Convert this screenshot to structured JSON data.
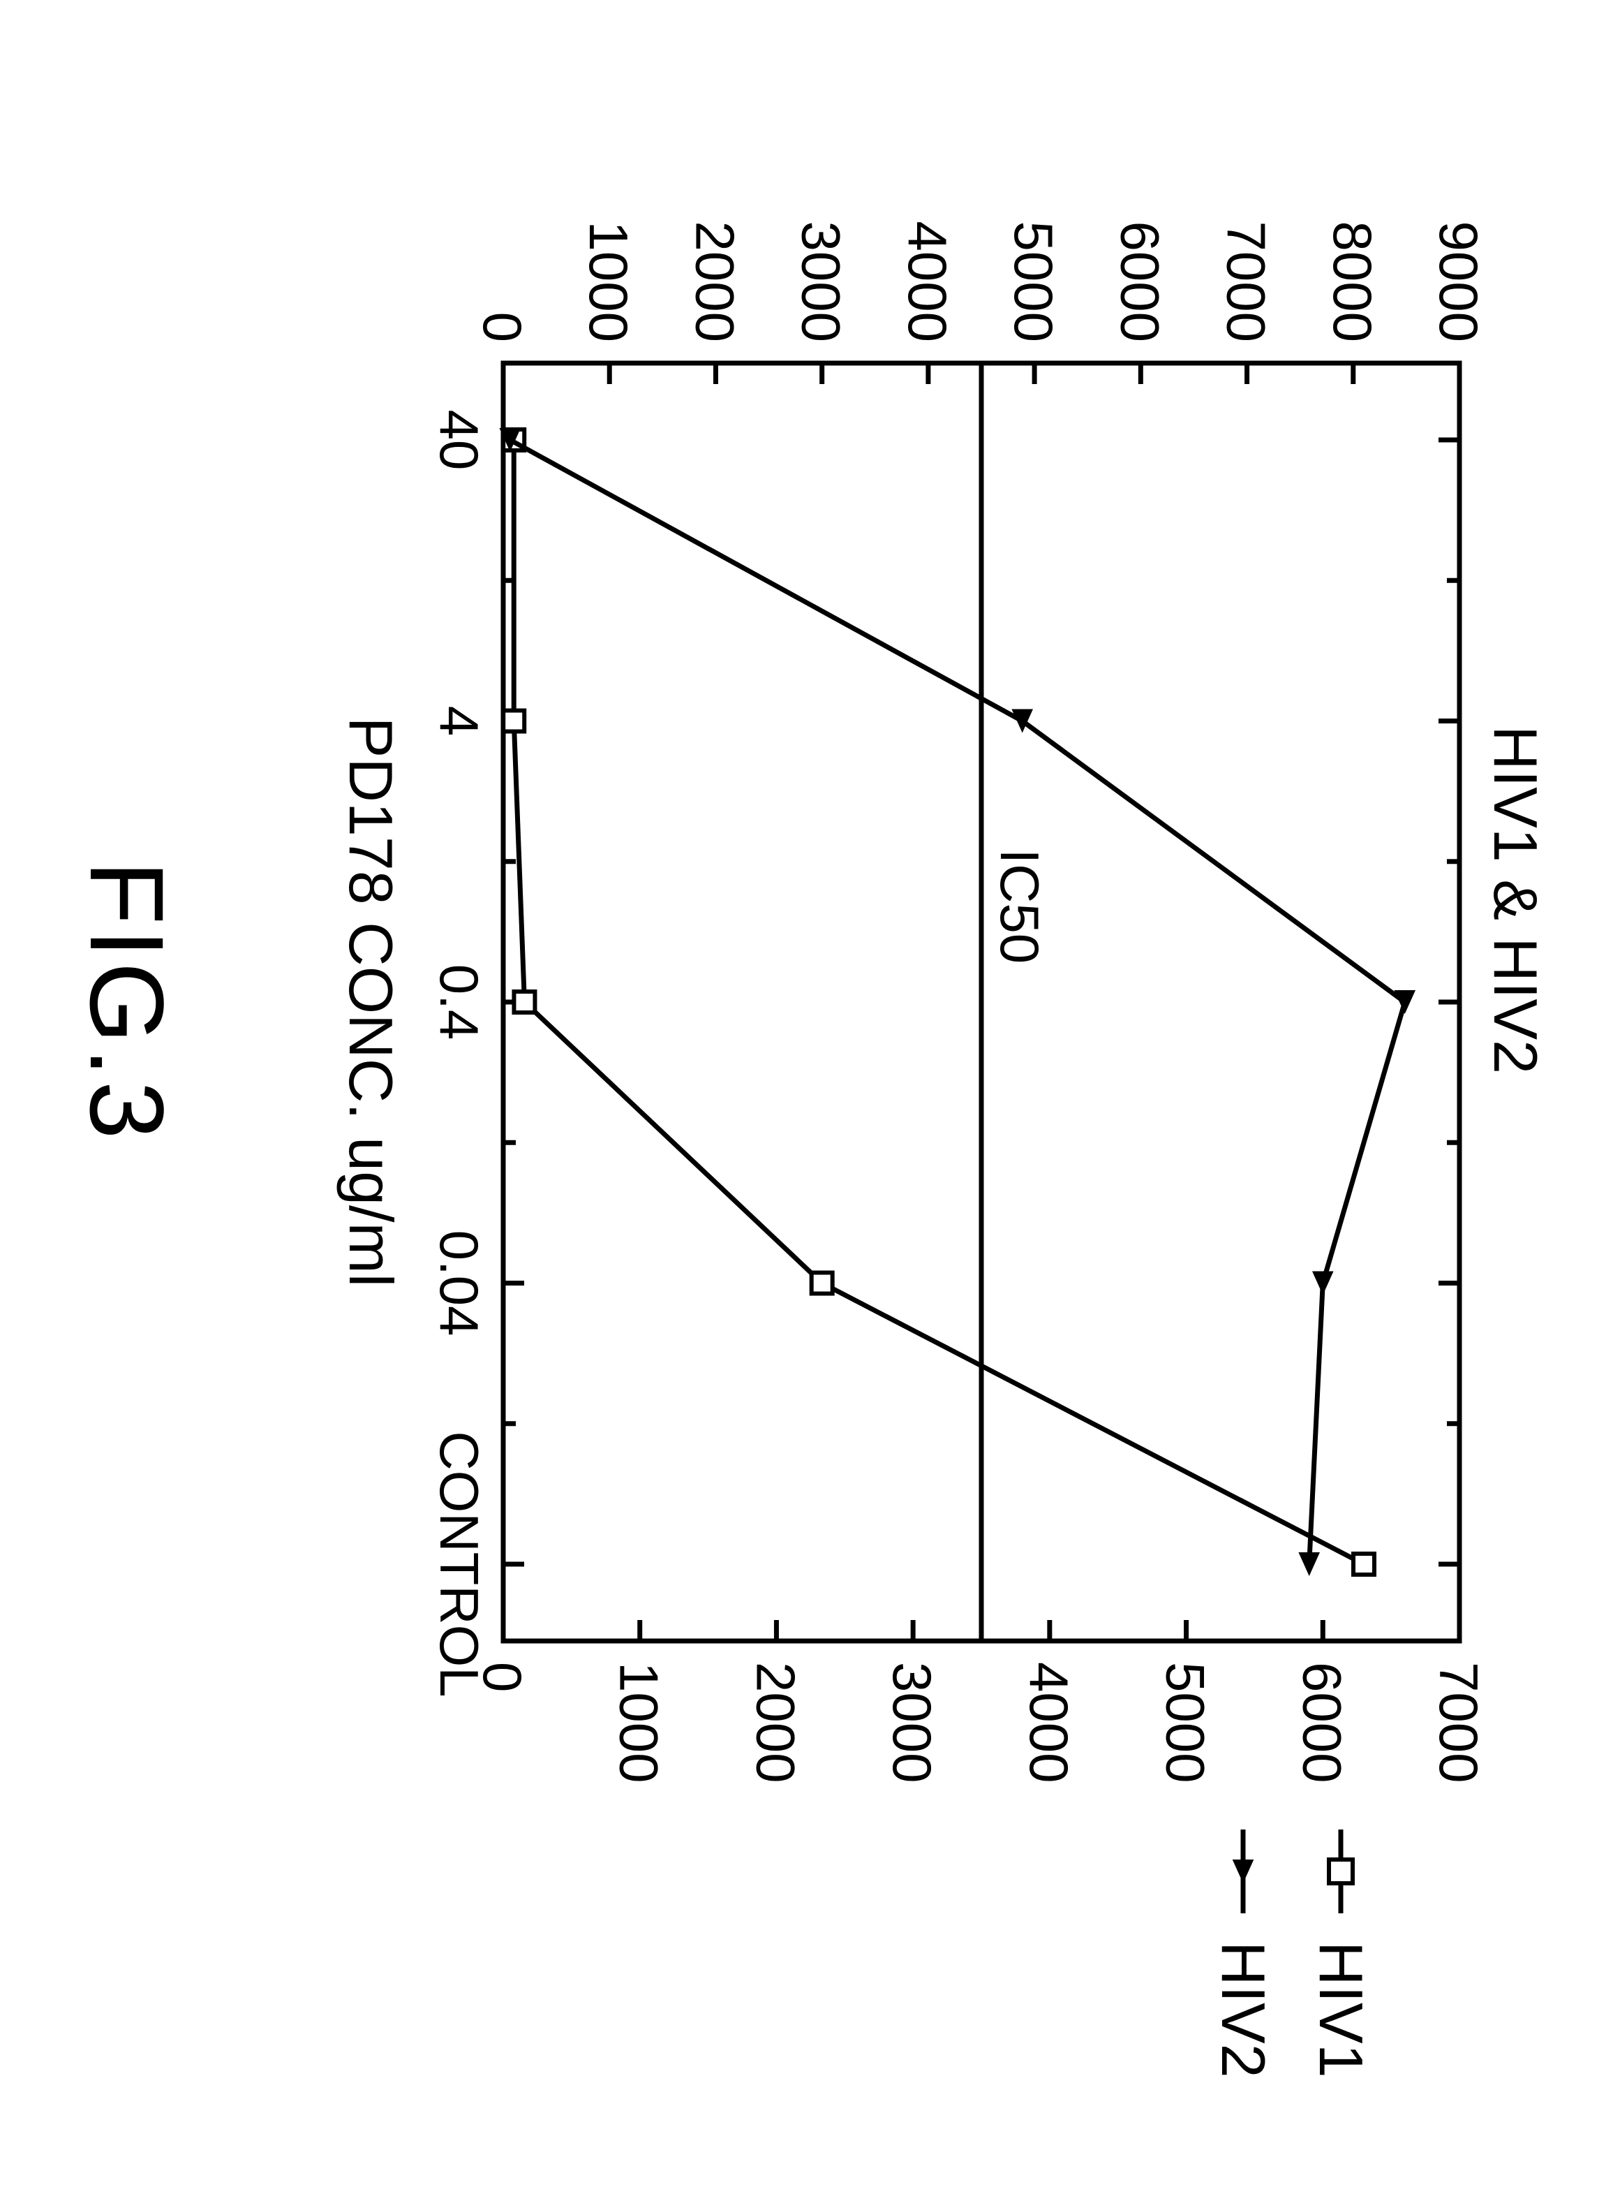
{
  "figure": {
    "caption": "FIG.3",
    "caption_fontsize": 150,
    "caption_fontweight": "normal",
    "rotation_deg": 90,
    "background": "#ffffff",
    "stroke_color": "#000000"
  },
  "chart": {
    "type": "line",
    "title": "HIV1 & HIV2",
    "title_fontsize": 88,
    "xlabel": "PD178 CONC. ug/ml",
    "xlabel_fontsize": 88,
    "x_categories": [
      "40",
      "4",
      "0.4",
      "0.04",
      "CONTROL"
    ],
    "x_tick_fontsize": 78,
    "left_axis": {
      "min": 0,
      "max": 9000,
      "ticks": [
        0,
        1000,
        2000,
        3000,
        4000,
        5000,
        6000,
        7000,
        8000,
        9000
      ],
      "tick_fontsize": 78
    },
    "right_axis": {
      "min": 0,
      "max": 7000,
      "ticks": [
        0,
        1000,
        2000,
        3000,
        4000,
        5000,
        6000,
        7000
      ],
      "tick_fontsize": 78
    },
    "ic50_line": {
      "label": "IC50",
      "y_left": 4500,
      "fontsize": 78
    },
    "series": [
      {
        "name": "HIV1",
        "axis": "left",
        "marker": "open-square",
        "marker_size": 30,
        "line_width": 7,
        "color": "#000000",
        "points": [
          {
            "x": "40",
            "y": 100
          },
          {
            "x": "4",
            "y": 100
          },
          {
            "x": "0.4",
            "y": 200
          },
          {
            "x": "0.04",
            "y": 3000
          },
          {
            "x": "CONTROL",
            "y": 8100
          }
        ]
      },
      {
        "name": "HIV2",
        "axis": "right",
        "marker": "filled-triangle",
        "marker_size": 34,
        "line_width": 7,
        "color": "#000000",
        "points": [
          {
            "x": "40",
            "y": 50
          },
          {
            "x": "4",
            "y": 3800
          },
          {
            "x": "0.4",
            "y": 6600
          },
          {
            "x": "0.04",
            "y": 6000
          },
          {
            "x": "CONTROL",
            "y": 5900
          }
        ]
      }
    ],
    "legend": {
      "items": [
        {
          "marker": "open-square",
          "label": "HIV1"
        },
        {
          "marker": "filled-triangle",
          "label": "HIV2"
        }
      ],
      "fontsize": 88
    },
    "line_width": 7,
    "axis_line_width": 7,
    "tick_len_major": 30,
    "tick_len_minor": 18
  }
}
